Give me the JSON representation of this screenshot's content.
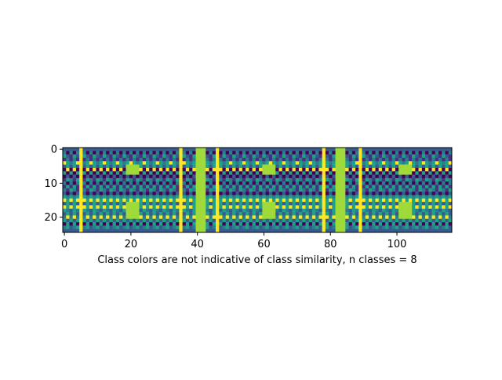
{
  "chart_data": {
    "type": "heatmap",
    "title": "",
    "xlabel": "Class colors are not indicative of class similarity, n classes = 8",
    "ylabel": "",
    "n_rows": 25,
    "n_cols": 117,
    "xlim": [
      -0.5,
      116.5
    ],
    "ylim": [
      24.5,
      -0.5
    ],
    "x_ticks": [
      0,
      20,
      40,
      60,
      80,
      100
    ],
    "y_ticks": [
      0,
      10,
      20
    ],
    "grid": false,
    "legend": "none",
    "colormap": "viridis",
    "n_classes": 8,
    "class_colors": [
      "#440154",
      "#46327e",
      "#365c8d",
      "#277f8e",
      "#1fa187",
      "#4ac16d",
      "#a0da39",
      "#fde725"
    ],
    "base_class": 2,
    "repeat_period": 42,
    "full_height_yellow_columns": [
      5,
      35,
      46,
      78,
      89
    ],
    "row_patterns": [
      {
        "row": 1,
        "period": 2,
        "classes": [
          3,
          0
        ]
      },
      {
        "row": 2,
        "period": 3,
        "classes": [
          4,
          2,
          1
        ]
      },
      {
        "row": 3,
        "period": 2,
        "classes": [
          1,
          3
        ]
      },
      {
        "row": 4,
        "period": 4,
        "classes": [
          7,
          4,
          3,
          4
        ]
      },
      {
        "row": 5,
        "period": 2,
        "classes": [
          2,
          4
        ]
      },
      {
        "row": 6,
        "period": 2,
        "classes": [
          0,
          7
        ]
      },
      {
        "row": 7,
        "period": 2,
        "classes": [
          4,
          0
        ]
      },
      {
        "row": 8,
        "period": 2,
        "classes": [
          0,
          2
        ]
      },
      {
        "row": 9,
        "period": 3,
        "classes": [
          1,
          4,
          3
        ]
      },
      {
        "row": 10,
        "period": 2,
        "classes": [
          3,
          0
        ]
      },
      {
        "row": 11,
        "period": 2,
        "classes": [
          1,
          4
        ]
      },
      {
        "row": 12,
        "period": 3,
        "classes": [
          3,
          1,
          4
        ]
      },
      {
        "row": 13,
        "period": 2,
        "classes": [
          2,
          0
        ]
      },
      {
        "row": 14,
        "period": 2,
        "classes": [
          4,
          3
        ]
      },
      {
        "row": 15,
        "period": 2,
        "classes": [
          7,
          4
        ]
      },
      {
        "row": 16,
        "period": 2,
        "classes": [
          2,
          4
        ]
      },
      {
        "row": 17,
        "period": 2,
        "classes": [
          7,
          4
        ]
      },
      {
        "row": 18,
        "period": 3,
        "classes": [
          4,
          3,
          2
        ]
      },
      {
        "row": 19,
        "period": 2,
        "classes": [
          2,
          4
        ]
      },
      {
        "row": 20,
        "period": 2,
        "classes": [
          3,
          7
        ]
      },
      {
        "row": 21,
        "period": 2,
        "classes": [
          4,
          2
        ]
      },
      {
        "row": 22,
        "period": 2,
        "classes": [
          0,
          4
        ]
      },
      {
        "row": 23,
        "period": 3,
        "classes": [
          3,
          4,
          2
        ]
      }
    ],
    "highlight_class": 6,
    "highlight_blocks": [
      {
        "col_start": 40,
        "col_end": 42,
        "row_start": 0,
        "row_end": 24
      },
      {
        "col_start": 82,
        "col_end": 84,
        "row_start": 0,
        "row_end": 24
      },
      {
        "col_start": 19,
        "col_end": 22,
        "row_start": 5,
        "row_end": 7
      },
      {
        "col_start": 60,
        "col_end": 63,
        "row_start": 5,
        "row_end": 7
      },
      {
        "col_start": 101,
        "col_end": 104,
        "row_start": 5,
        "row_end": 7
      },
      {
        "col_start": 19,
        "col_end": 22,
        "row_start": 16,
        "row_end": 20
      },
      {
        "col_start": 60,
        "col_end": 63,
        "row_start": 16,
        "row_end": 20
      },
      {
        "col_start": 101,
        "col_end": 104,
        "row_start": 16,
        "row_end": 20
      }
    ]
  }
}
